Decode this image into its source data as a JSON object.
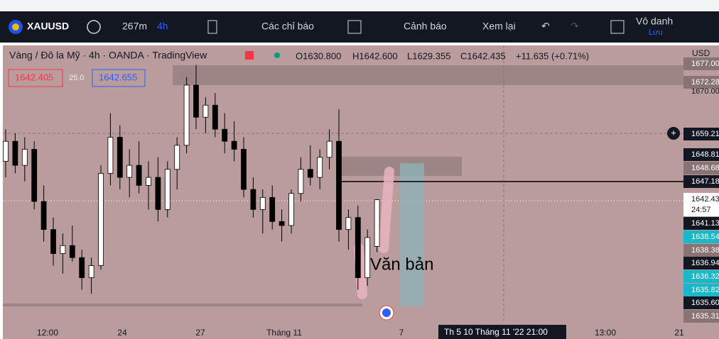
{
  "toolbar": {
    "symbol": "XAUUSD",
    "interval": "267m",
    "interval2": "4h",
    "indicators": "Các chỉ báo",
    "alerts": "Cảnh báo",
    "replay": "Xem lại",
    "layout_name": "Vô danh",
    "save": "Lưu"
  },
  "legend": {
    "title": "Vàng / Đô la Mỹ · 4h · OANDA · TradingView",
    "open": "O1630.800",
    "high": "H1642.600",
    "low": "L1629.355",
    "close": "C1642.435",
    "change": "+11.635 (+0.71%)",
    "bid": "1642.405",
    "spread": "25.0",
    "ask": "1642.655"
  },
  "currency": "USD",
  "annotation": "Văn bản",
  "price_labels": [
    "1677.00",
    "1672.28",
    "1670.00",
    "1659.21",
    "1648.81",
    "1648.68",
    "1647.18",
    "1642.435",
    "24:57",
    "1641.13",
    "1638.54",
    "1638.38",
    "1636.94",
    "1636.32",
    "1635.82",
    "1635.60",
    "1635.31"
  ],
  "time_labels": [
    "12:00",
    "24",
    "27",
    "Tháng 11",
    "7",
    "13:00",
    "21"
  ],
  "crosshair_time": "Th 5 10 Tháng 11 '22   21:00",
  "chart_data": {
    "type": "candlestick",
    "ylim": [
      1611.6,
      1680.9
    ],
    "candles": [
      [
        1652,
        1660,
        1648,
        1657
      ],
      [
        1657,
        1659,
        1649,
        1651
      ],
      [
        1651,
        1658,
        1647,
        1655
      ],
      [
        1655,
        1657,
        1640,
        1642
      ],
      [
        1642,
        1646,
        1632,
        1635
      ],
      [
        1635,
        1638,
        1626,
        1629
      ],
      [
        1629,
        1634,
        1624,
        1631
      ],
      [
        1631,
        1636,
        1627,
        1628
      ],
      [
        1628,
        1630,
        1620,
        1623
      ],
      [
        1623,
        1628,
        1619,
        1626
      ],
      [
        1626,
        1651,
        1625,
        1649
      ],
      [
        1649,
        1664,
        1646,
        1658
      ],
      [
        1658,
        1661,
        1645,
        1648
      ],
      [
        1648,
        1655,
        1643,
        1651
      ],
      [
        1651,
        1657,
        1644,
        1646
      ],
      [
        1646,
        1652,
        1640,
        1648
      ],
      [
        1648,
        1653,
        1637,
        1640
      ],
      [
        1640,
        1652,
        1638,
        1650
      ],
      [
        1650,
        1658,
        1645,
        1656
      ],
      [
        1656,
        1673,
        1654,
        1671
      ],
      [
        1671,
        1676,
        1660,
        1663
      ],
      [
        1663,
        1668,
        1659,
        1666
      ],
      [
        1666,
        1669,
        1658,
        1660
      ],
      [
        1660,
        1664,
        1654,
        1657
      ],
      [
        1657,
        1662,
        1652,
        1655
      ],
      [
        1655,
        1658,
        1643,
        1645
      ],
      [
        1645,
        1648,
        1638,
        1640
      ],
      [
        1640,
        1645,
        1634,
        1643
      ],
      [
        1643,
        1646,
        1635,
        1637
      ],
      [
        1637,
        1640,
        1632,
        1636
      ],
      [
        1636,
        1645,
        1634,
        1644
      ],
      [
        1644,
        1653,
        1642,
        1650
      ],
      [
        1650,
        1656,
        1646,
        1648
      ],
      [
        1648,
        1655,
        1645,
        1653
      ],
      [
        1653,
        1660,
        1650,
        1657
      ],
      [
        1657,
        1665,
        1632,
        1635
      ],
      [
        1635,
        1640,
        1630,
        1638
      ],
      [
        1638,
        1641,
        1620,
        1623
      ],
      [
        1623,
        1635,
        1621,
        1633
      ],
      [
        1630.8,
        1642.6,
        1629.355,
        1642.435
      ]
    ]
  }
}
